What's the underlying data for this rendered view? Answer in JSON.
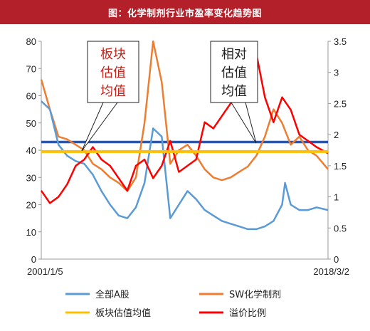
{
  "header": {
    "title": "图：化学制剂行业市盈率变化趋势图"
  },
  "colors": {
    "title_bg": "#b4202a",
    "all_a": "#5b9bd5",
    "sw_chem": "#ed7d31",
    "avg": "#ffc000",
    "premium": "#ff0000",
    "sw_avg_line": "#2e56a6"
  },
  "chart_data": {
    "type": "line",
    "title": "图：化学制剂行业市盈率变化趋势图",
    "x_start": "2001/1/5",
    "x_end": "2018/3/2",
    "y_left": {
      "min": 0,
      "max": 80,
      "ticks": [
        0,
        10,
        20,
        30,
        40,
        50,
        60,
        70,
        80
      ]
    },
    "y_right": {
      "min": 0,
      "max": 3.5,
      "ticks": [
        "0",
        "0.5",
        "1",
        "1.5",
        "2",
        "2.5",
        "3",
        "3.5"
      ]
    },
    "grid": false,
    "legend_position": "bottom",
    "series": [
      {
        "name": "全部A股",
        "axis": "left",
        "color": "#5b9bd5",
        "x": [
          0.0,
          0.03,
          0.06,
          0.09,
          0.12,
          0.15,
          0.18,
          0.21,
          0.24,
          0.27,
          0.3,
          0.33,
          0.36,
          0.39,
          0.42,
          0.45,
          0.48,
          0.51,
          0.54,
          0.57,
          0.6,
          0.63,
          0.66,
          0.69,
          0.72,
          0.75,
          0.78,
          0.81,
          0.84,
          0.85,
          0.87,
          0.9,
          0.93,
          0.96,
          1.0
        ],
        "y": [
          58,
          55,
          42,
          38,
          36,
          35,
          31,
          25,
          20,
          16,
          15,
          19,
          28,
          48,
          45,
          15,
          20,
          25,
          22,
          18,
          16,
          14,
          13,
          12,
          11,
          11,
          12,
          14,
          20,
          28,
          20,
          18,
          18,
          19,
          18
        ]
      },
      {
        "name": "SW化学制剂",
        "axis": "left",
        "color": "#ed7d31",
        "x": [
          0.0,
          0.03,
          0.06,
          0.09,
          0.12,
          0.15,
          0.18,
          0.21,
          0.24,
          0.27,
          0.3,
          0.33,
          0.36,
          0.39,
          0.42,
          0.45,
          0.48,
          0.51,
          0.54,
          0.57,
          0.6,
          0.63,
          0.66,
          0.69,
          0.72,
          0.75,
          0.78,
          0.81,
          0.84,
          0.87,
          0.9,
          0.93,
          0.96,
          1.0
        ],
        "y": [
          66,
          55,
          45,
          44,
          42,
          40,
          35,
          33,
          30,
          28,
          25,
          30,
          50,
          80,
          65,
          35,
          40,
          42,
          38,
          33,
          30,
          29,
          30,
          32,
          34,
          38,
          45,
          55,
          50,
          42,
          45,
          40,
          38,
          33
        ]
      },
      {
        "name": "板块估值均值",
        "axis": "left",
        "color": "#ffc000",
        "x": [
          0.0,
          1.0
        ],
        "y": [
          39.5,
          39.5
        ]
      },
      {
        "name": "溢价比例",
        "axis": "right",
        "color": "#ff0000",
        "x": [
          0.0,
          0.03,
          0.06,
          0.09,
          0.12,
          0.15,
          0.18,
          0.21,
          0.24,
          0.27,
          0.3,
          0.33,
          0.36,
          0.39,
          0.42,
          0.45,
          0.48,
          0.51,
          0.54,
          0.57,
          0.6,
          0.63,
          0.66,
          0.69,
          0.72,
          0.75,
          0.78,
          0.81,
          0.84,
          0.87,
          0.9,
          0.93,
          0.96,
          1.0
        ],
        "y": [
          1.1,
          0.9,
          1.0,
          1.2,
          1.5,
          1.6,
          1.8,
          1.6,
          1.5,
          1.3,
          1.1,
          1.5,
          1.6,
          1.3,
          1.5,
          1.9,
          1.4,
          1.5,
          1.6,
          2.2,
          2.1,
          2.3,
          2.5,
          2.7,
          3.2,
          3.3,
          2.6,
          2.2,
          2.6,
          2.4,
          2.0,
          1.9,
          1.8,
          1.7
        ]
      }
    ],
    "reference_lines": [
      {
        "axis": "left",
        "value": 43,
        "color": "#2e56a6"
      }
    ],
    "annotations": [
      {
        "text_lines": [
          "板块",
          "估值",
          "均值"
        ],
        "color": "#c0261e"
      },
      {
        "text_lines": [
          "相对",
          "估值",
          "均值"
        ],
        "color": "#222222"
      }
    ],
    "legend": [
      {
        "label": "全部A股",
        "color": "#5b9bd5"
      },
      {
        "label": "SW化学制剂",
        "color": "#ed7d31"
      },
      {
        "label": "板块估值均值",
        "color": "#ffc000"
      },
      {
        "label": "溢价比例",
        "color": "#ff0000"
      }
    ]
  }
}
